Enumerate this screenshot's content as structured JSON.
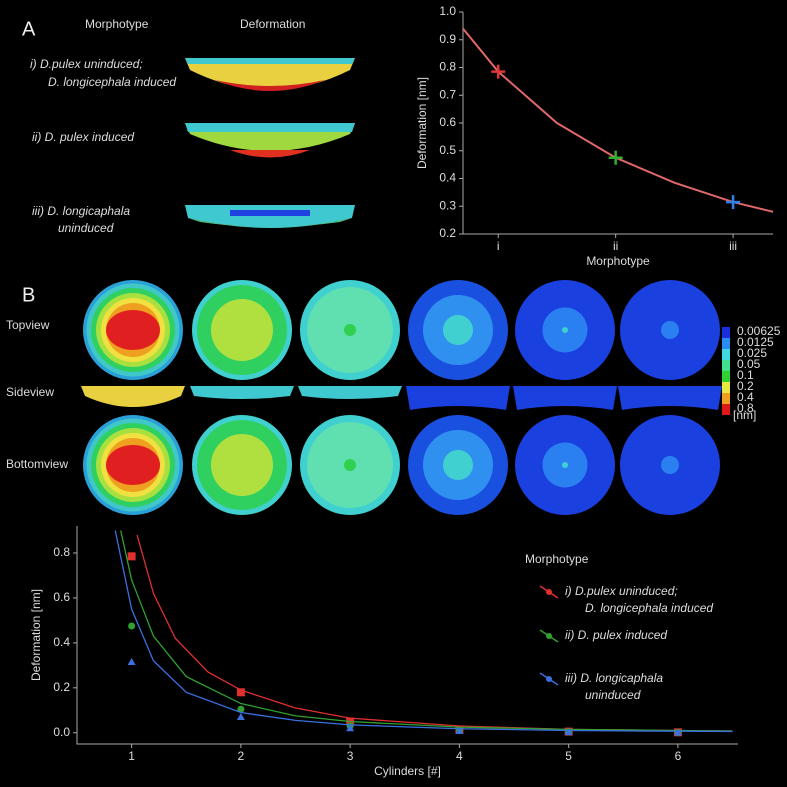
{
  "panel_a": {
    "label": "A",
    "col_headers": [
      "Morphotype",
      "Deformation"
    ],
    "rows": [
      [
        "i) D.pulex uninduced;",
        "D. longicephala induced"
      ],
      [
        "ii) D. pulex induced"
      ],
      [
        "iii) D. longicaphala",
        "uninduced"
      ]
    ]
  },
  "panel_b": {
    "label": "B",
    "row_labels": [
      "Topview",
      "Sideview",
      "Bottomview"
    ],
    "colorbar": {
      "ticks": [
        0.00625,
        0.0125,
        0.025,
        0.05,
        0.1,
        0.2,
        0.4,
        0.8
      ],
      "colors": [
        "#1a2ee0",
        "#2a8cf0",
        "#40d8e0",
        "#40e090",
        "#30d030",
        "#e8e840",
        "#f0a020",
        "#e01818"
      ],
      "unit": "[nm]"
    }
  },
  "chart_data": [
    {
      "type": "line",
      "x_label": "Morphotype",
      "y_label": "Deformation [nm]",
      "xlim": [
        0.7,
        3.34
      ],
      "ylim": [
        0.2,
        1.0
      ],
      "xticks": [
        {
          "value": 1,
          "label": "i"
        },
        {
          "value": 2,
          "label": "ii"
        },
        {
          "value": 3,
          "label": "iii"
        }
      ],
      "yticks": [
        0.2,
        0.3,
        0.4,
        0.5,
        0.6,
        0.7,
        0.8,
        0.9,
        {
          "value": 1,
          "label": "1.0"
        }
      ],
      "points": {
        "x": [
          1,
          2,
          3
        ],
        "values": [
          0.785,
          0.475,
          0.315
        ],
        "colors": [
          "#e03838",
          "#30b030",
          "#3080e8"
        ]
      },
      "fit": {
        "x": [
          0.7,
          1,
          1.5,
          2,
          2.5,
          3,
          3.34
        ],
        "values": [
          0.94,
          0.785,
          0.6,
          0.475,
          0.385,
          0.315,
          0.28
        ],
        "color": "#e06868"
      }
    },
    {
      "type": "scatter",
      "x_label": "Cylinders [#]",
      "y_label": "Deformation [nm]",
      "legend_title": "Morphotype",
      "xlim": [
        0.5,
        6.55
      ],
      "ylim": [
        -0.05,
        0.92
      ],
      "xticks": [
        1,
        2,
        3,
        4,
        5,
        6
      ],
      "yticks": [
        {
          "value": 0,
          "label": "0.0"
        },
        0.2,
        0.4,
        0.6,
        0.8
      ],
      "series": [
        {
          "name": [
            "i) D.pulex uninduced;",
            "D. longicephala induced"
          ],
          "color": "#e03030",
          "marker": "square",
          "x": [
            1,
            2,
            3,
            4,
            5,
            6
          ],
          "values": [
            0.785,
            0.18,
            0.05,
            0.015,
            0.005,
            0.002
          ],
          "fit": {
            "x": [
              1.05,
              1.2,
              1.4,
              1.7,
              2,
              2.5,
              3,
              4,
              5,
              6,
              6.5
            ],
            "values": [
              0.88,
              0.62,
              0.42,
              0.27,
              0.19,
              0.11,
              0.065,
              0.03,
              0.015,
              0.01,
              0.008
            ]
          }
        },
        {
          "name": [
            "ii) D. pulex induced"
          ],
          "color": "#30a030",
          "marker": "circle",
          "x": [
            1,
            2,
            3,
            4,
            5,
            6
          ],
          "values": [
            0.475,
            0.105,
            0.03,
            0.01,
            0.004,
            0.001
          ],
          "fit": {
            "x": [
              0.9,
              1,
              1.2,
              1.5,
              2,
              2.5,
              3,
              4,
              5,
              6,
              6.5
            ],
            "values": [
              0.9,
              0.68,
              0.43,
              0.25,
              0.13,
              0.075,
              0.05,
              0.025,
              0.015,
              0.01,
              0.008
            ]
          }
        },
        {
          "name": [
            "iii) D. longicaphala",
            "uninduced"
          ],
          "color": "#3a70e0",
          "marker": "triangle",
          "x": [
            1,
            2,
            3,
            4,
            5,
            6
          ],
          "values": [
            0.315,
            0.07,
            0.02,
            0.008,
            0.003,
            0.001
          ],
          "fit": {
            "x": [
              0.85,
              1,
              1.2,
              1.5,
              2,
              2.5,
              3,
              4,
              5,
              6,
              6.5
            ],
            "values": [
              0.9,
              0.55,
              0.32,
              0.18,
              0.09,
              0.055,
              0.035,
              0.018,
              0.01,
              0.007,
              0.006
            ]
          }
        }
      ]
    }
  ]
}
